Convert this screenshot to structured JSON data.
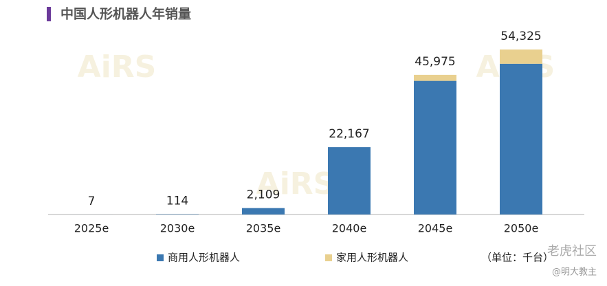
{
  "chart_data": {
    "type": "stacked_bar",
    "title": "中国人形机器人年销量",
    "categories": [
      "2025e",
      "2030e",
      "2035e",
      "2040e",
      "2045e",
      "2050e"
    ],
    "series": [
      {
        "name": "商用人形机器人",
        "color": "#3b78b1",
        "values": [
          7,
          114,
          2109,
          22167,
          44000,
          49625
        ]
      },
      {
        "name": "家用人形机器人",
        "color": "#e9d08f",
        "values": [
          0,
          0,
          0,
          0,
          1975,
          4700
        ]
      }
    ],
    "totals": [
      7,
      114,
      2109,
      22167,
      45975,
      54325
    ],
    "total_labels": [
      "7",
      "114",
      "2,109",
      "22,167",
      "45,975",
      "54,325"
    ],
    "unit": "（单位：千台）",
    "watermarks": [
      "AiRS",
      "老虎社区",
      "@明大教主"
    ]
  }
}
